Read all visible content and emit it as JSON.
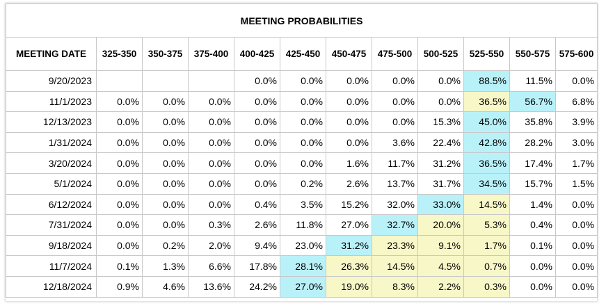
{
  "title": "MEETING PROBABILITIES",
  "columns": [
    "MEETING DATE",
    "325-350",
    "350-375",
    "375-400",
    "400-425",
    "425-450",
    "450-475",
    "475-500",
    "500-525",
    "525-550",
    "550-575",
    "575-600"
  ],
  "colors": {
    "highest": "#b9f1f9",
    "next": "#f7f7c8"
  },
  "rows": [
    {
      "date": "9/20/2023",
      "values": [
        "",
        "",
        "",
        "0.0%",
        "0.0%",
        "0.0%",
        "0.0%",
        "0.0%",
        "88.5%",
        "11.5%",
        "0.0%"
      ],
      "hi": [
        8
      ],
      "mid": []
    },
    {
      "date": "11/1/2023",
      "values": [
        "0.0%",
        "0.0%",
        "0.0%",
        "0.0%",
        "0.0%",
        "0.0%",
        "0.0%",
        "0.0%",
        "36.5%",
        "56.7%",
        "6.8%"
      ],
      "hi": [
        9
      ],
      "mid": [
        8
      ]
    },
    {
      "date": "12/13/2023",
      "values": [
        "0.0%",
        "0.0%",
        "0.0%",
        "0.0%",
        "0.0%",
        "0.0%",
        "0.0%",
        "15.3%",
        "45.0%",
        "35.8%",
        "3.9%"
      ],
      "hi": [
        8
      ],
      "mid": []
    },
    {
      "date": "1/31/2024",
      "values": [
        "0.0%",
        "0.0%",
        "0.0%",
        "0.0%",
        "0.0%",
        "0.0%",
        "3.6%",
        "22.4%",
        "42.8%",
        "28.2%",
        "3.0%"
      ],
      "hi": [
        8
      ],
      "mid": []
    },
    {
      "date": "3/20/2024",
      "values": [
        "0.0%",
        "0.0%",
        "0.0%",
        "0.0%",
        "0.0%",
        "1.6%",
        "11.7%",
        "31.2%",
        "36.5%",
        "17.4%",
        "1.7%"
      ],
      "hi": [
        8
      ],
      "mid": []
    },
    {
      "date": "5/1/2024",
      "values": [
        "0.0%",
        "0.0%",
        "0.0%",
        "0.0%",
        "0.2%",
        "2.6%",
        "13.7%",
        "31.7%",
        "34.5%",
        "15.7%",
        "1.5%"
      ],
      "hi": [
        8
      ],
      "mid": []
    },
    {
      "date": "6/12/2024",
      "values": [
        "0.0%",
        "0.0%",
        "0.0%",
        "0.4%",
        "3.5%",
        "15.2%",
        "32.0%",
        "33.0%",
        "14.5%",
        "1.4%",
        "0.0%"
      ],
      "hi": [
        7
      ],
      "mid": [
        8
      ]
    },
    {
      "date": "7/31/2024",
      "values": [
        "0.0%",
        "0.0%",
        "0.3%",
        "2.6%",
        "11.8%",
        "27.0%",
        "32.7%",
        "20.0%",
        "5.3%",
        "0.4%",
        "0.0%"
      ],
      "hi": [
        6
      ],
      "mid": [
        7,
        8
      ]
    },
    {
      "date": "9/18/2024",
      "values": [
        "0.0%",
        "0.2%",
        "2.0%",
        "9.4%",
        "23.0%",
        "31.2%",
        "23.3%",
        "9.1%",
        "1.7%",
        "0.1%",
        "0.0%"
      ],
      "hi": [
        5
      ],
      "mid": [
        6,
        7,
        8
      ]
    },
    {
      "date": "11/7/2024",
      "values": [
        "0.1%",
        "1.3%",
        "6.6%",
        "17.8%",
        "28.1%",
        "26.3%",
        "14.5%",
        "4.5%",
        "0.7%",
        "0.0%",
        "0.0%"
      ],
      "hi": [
        4
      ],
      "mid": [
        5,
        6,
        7,
        8
      ]
    },
    {
      "date": "12/18/2024",
      "values": [
        "0.9%",
        "4.6%",
        "13.6%",
        "24.2%",
        "27.0%",
        "19.0%",
        "8.3%",
        "2.2%",
        "0.3%",
        "0.0%",
        "0.0%"
      ],
      "hi": [
        4
      ],
      "mid": [
        5,
        6,
        7,
        8
      ]
    }
  ]
}
